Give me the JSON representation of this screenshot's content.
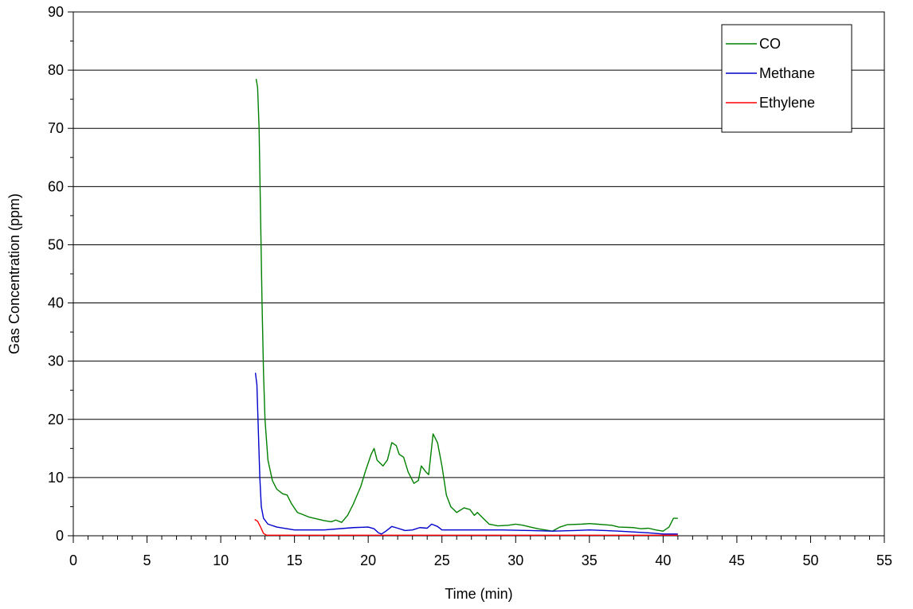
{
  "chart_data": {
    "type": "line",
    "title": "",
    "xlabel": "Time (min)",
    "ylabel": "Gas Concentration (ppm)",
    "xlim": [
      0,
      55
    ],
    "ylim": [
      0,
      90
    ],
    "x_ticks": [
      "0",
      "5",
      "10",
      "15",
      "20",
      "25",
      "30",
      "35",
      "40",
      "45",
      "50",
      "55"
    ],
    "y_ticks": [
      "0",
      "10",
      "20",
      "30",
      "40",
      "50",
      "60",
      "70",
      "80",
      "90"
    ],
    "grid": "horizontal",
    "legend_position": "top-right",
    "series": [
      {
        "name": "CO",
        "color": "#008000",
        "points": [
          [
            12.4,
            78.5
          ],
          [
            12.5,
            77
          ],
          [
            12.6,
            70
          ],
          [
            12.7,
            55
          ],
          [
            12.8,
            40
          ],
          [
            12.9,
            28
          ],
          [
            13.0,
            20
          ],
          [
            13.2,
            13
          ],
          [
            13.5,
            9.5
          ],
          [
            13.8,
            8
          ],
          [
            14.2,
            7.2
          ],
          [
            14.5,
            7
          ],
          [
            14.8,
            5.5
          ],
          [
            15.2,
            4
          ],
          [
            16,
            3.2
          ],
          [
            17,
            2.6
          ],
          [
            17.5,
            2.4
          ],
          [
            17.8,
            2.7
          ],
          [
            18.2,
            2.3
          ],
          [
            18.6,
            3.5
          ],
          [
            19,
            5.5
          ],
          [
            19.5,
            8.5
          ],
          [
            19.8,
            11
          ],
          [
            20.2,
            14
          ],
          [
            20.4,
            15
          ],
          [
            20.6,
            13
          ],
          [
            21,
            12
          ],
          [
            21.3,
            13
          ],
          [
            21.6,
            16
          ],
          [
            21.9,
            15.5
          ],
          [
            22.1,
            14
          ],
          [
            22.4,
            13.5
          ],
          [
            22.7,
            11
          ],
          [
            23.1,
            9
          ],
          [
            23.4,
            9.5
          ],
          [
            23.6,
            12
          ],
          [
            23.9,
            11
          ],
          [
            24.1,
            10.5
          ],
          [
            24.4,
            17.5
          ],
          [
            24.7,
            16
          ],
          [
            25,
            12
          ],
          [
            25.3,
            7
          ],
          [
            25.6,
            5
          ],
          [
            26,
            4
          ],
          [
            26.5,
            4.8
          ],
          [
            26.9,
            4.5
          ],
          [
            27.2,
            3.5
          ],
          [
            27.4,
            4
          ],
          [
            27.8,
            3
          ],
          [
            28.2,
            2
          ],
          [
            28.8,
            1.7
          ],
          [
            29.5,
            1.8
          ],
          [
            30,
            2
          ],
          [
            30.5,
            1.8
          ],
          [
            31,
            1.5
          ],
          [
            31.5,
            1.2
          ],
          [
            32,
            1
          ],
          [
            32.5,
            0.8
          ],
          [
            33,
            1.5
          ],
          [
            33.5,
            1.9
          ],
          [
            34.5,
            2
          ],
          [
            35,
            2.1
          ],
          [
            35.5,
            2
          ],
          [
            36.5,
            1.8
          ],
          [
            37,
            1.5
          ],
          [
            38,
            1.4
          ],
          [
            38.5,
            1.2
          ],
          [
            39,
            1.3
          ],
          [
            39.5,
            1
          ],
          [
            40,
            0.8
          ],
          [
            40.4,
            1.5
          ],
          [
            40.7,
            3
          ],
          [
            41,
            3
          ]
        ]
      },
      {
        "name": "Methane",
        "color": "#0000CC",
        "points": [
          [
            12.35,
            28
          ],
          [
            12.45,
            26
          ],
          [
            12.55,
            18
          ],
          [
            12.65,
            10
          ],
          [
            12.75,
            5
          ],
          [
            12.9,
            3
          ],
          [
            13.2,
            2
          ],
          [
            13.8,
            1.5
          ],
          [
            15,
            1
          ],
          [
            17,
            1
          ],
          [
            19,
            1.4
          ],
          [
            20,
            1.5
          ],
          [
            20.4,
            1.2
          ],
          [
            20.7,
            0.5
          ],
          [
            20.9,
            0.3
          ],
          [
            21.2,
            0.8
          ],
          [
            21.6,
            1.6
          ],
          [
            22,
            1.3
          ],
          [
            22.5,
            0.9
          ],
          [
            23,
            1
          ],
          [
            23.5,
            1.4
          ],
          [
            24,
            1.3
          ],
          [
            24.3,
            2
          ],
          [
            24.7,
            1.6
          ],
          [
            25,
            1
          ],
          [
            27,
            1
          ],
          [
            29,
            1
          ],
          [
            31,
            0.9
          ],
          [
            32.5,
            0.8
          ],
          [
            34,
            0.9
          ],
          [
            35,
            1
          ],
          [
            37,
            0.8
          ],
          [
            39,
            0.5
          ],
          [
            40,
            0.3
          ],
          [
            41,
            0.3
          ]
        ]
      },
      {
        "name": "Ethylene",
        "color": "#FF0000",
        "points": [
          [
            12.3,
            2.8
          ],
          [
            12.5,
            2.5
          ],
          [
            12.7,
            1.5
          ],
          [
            12.9,
            0.4
          ],
          [
            13.1,
            0.1
          ],
          [
            15,
            0.1
          ],
          [
            20,
            0.1
          ],
          [
            25,
            0.1
          ],
          [
            30,
            0.1
          ],
          [
            35,
            0.1
          ],
          [
            40,
            0.1
          ],
          [
            41,
            0.1
          ]
        ]
      }
    ]
  }
}
